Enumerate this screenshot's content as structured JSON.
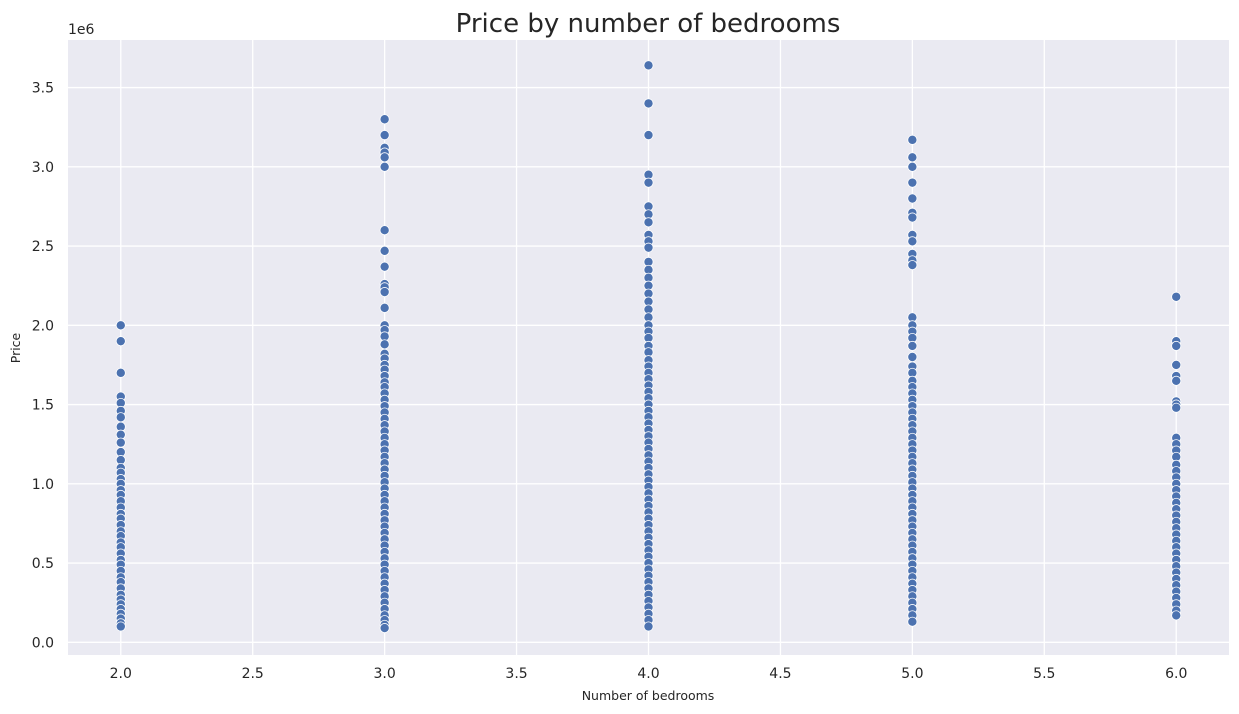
{
  "chart_data": {
    "type": "scatter",
    "title": "Price by number of bedrooms",
    "xlabel": "Number of bedrooms",
    "ylabel": "Price",
    "y_offset_label": "1e6",
    "xlim": [
      1.8,
      6.2
    ],
    "ylim": [
      -0.08,
      3.8
    ],
    "x_ticks": [
      2.0,
      2.5,
      3.0,
      3.5,
      4.0,
      4.5,
      5.0,
      5.5,
      6.0
    ],
    "x_tick_labels": [
      "2.0",
      "2.5",
      "3.0",
      "3.5",
      "4.0",
      "4.5",
      "5.0",
      "5.5",
      "6.0"
    ],
    "y_ticks": [
      0.0,
      0.5,
      1.0,
      1.5,
      2.0,
      2.5,
      3.0,
      3.5
    ],
    "y_tick_labels": [
      "0.0",
      "0.5",
      "1.0",
      "1.5",
      "2.0",
      "2.5",
      "3.0",
      "3.5"
    ],
    "grid": true,
    "background_color": "#eaeaf2",
    "marker_color": "#4c72b0",
    "series": [
      {
        "x": 2,
        "y": [
          2.0,
          1.9,
          1.7,
          1.55,
          1.51,
          1.46,
          1.42,
          1.36,
          1.31,
          1.26,
          1.2,
          1.15,
          1.1,
          1.07,
          1.03,
          1.0,
          0.96,
          0.93,
          0.89,
          0.85,
          0.81,
          0.78,
          0.74,
          0.7,
          0.67,
          0.63,
          0.6,
          0.56,
          0.52,
          0.49,
          0.45,
          0.41,
          0.38,
          0.34,
          0.3,
          0.27,
          0.24,
          0.21,
          0.18,
          0.15,
          0.12,
          0.1
        ]
      },
      {
        "x": 3,
        "y": [
          3.3,
          3.2,
          3.12,
          3.09,
          3.06,
          3.0,
          2.6,
          2.47,
          2.37,
          2.26,
          2.24,
          2.21,
          2.11,
          2.0,
          1.97,
          1.93,
          1.88,
          1.82,
          1.79,
          1.75,
          1.72,
          1.68,
          1.64,
          1.61,
          1.57,
          1.53,
          1.49,
          1.45,
          1.41,
          1.37,
          1.33,
          1.29,
          1.25,
          1.21,
          1.17,
          1.13,
          1.09,
          1.05,
          1.01,
          0.97,
          0.93,
          0.89,
          0.85,
          0.81,
          0.77,
          0.73,
          0.69,
          0.65,
          0.61,
          0.57,
          0.53,
          0.49,
          0.45,
          0.41,
          0.37,
          0.33,
          0.29,
          0.25,
          0.21,
          0.17,
          0.14,
          0.11,
          0.09
        ]
      },
      {
        "x": 4,
        "y": [
          3.64,
          3.4,
          3.2,
          2.95,
          2.9,
          2.75,
          2.7,
          2.65,
          2.57,
          2.53,
          2.49,
          2.4,
          2.35,
          2.3,
          2.25,
          2.2,
          2.15,
          2.1,
          2.05,
          2.0,
          1.96,
          1.92,
          1.87,
          1.83,
          1.78,
          1.74,
          1.7,
          1.66,
          1.62,
          1.58,
          1.54,
          1.5,
          1.46,
          1.42,
          1.38,
          1.34,
          1.3,
          1.26,
          1.22,
          1.18,
          1.14,
          1.1,
          1.06,
          1.02,
          0.98,
          0.94,
          0.9,
          0.86,
          0.82,
          0.78,
          0.74,
          0.7,
          0.66,
          0.62,
          0.58,
          0.54,
          0.5,
          0.46,
          0.42,
          0.38,
          0.34,
          0.3,
          0.26,
          0.22,
          0.18,
          0.14,
          0.1
        ]
      },
      {
        "x": 5,
        "y": [
          3.17,
          3.06,
          3.0,
          2.9,
          2.8,
          2.71,
          2.68,
          2.57,
          2.53,
          2.45,
          2.41,
          2.38,
          2.05,
          2.0,
          1.96,
          1.92,
          1.87,
          1.8,
          1.74,
          1.7,
          1.65,
          1.61,
          1.57,
          1.53,
          1.49,
          1.45,
          1.41,
          1.37,
          1.33,
          1.29,
          1.25,
          1.21,
          1.17,
          1.13,
          1.09,
          1.05,
          1.01,
          0.97,
          0.93,
          0.89,
          0.85,
          0.81,
          0.77,
          0.73,
          0.69,
          0.65,
          0.61,
          0.57,
          0.53,
          0.49,
          0.45,
          0.41,
          0.37,
          0.33,
          0.29,
          0.25,
          0.21,
          0.17,
          0.13
        ]
      },
      {
        "x": 6,
        "y": [
          2.18,
          1.9,
          1.87,
          1.75,
          1.68,
          1.65,
          1.52,
          1.5,
          1.48,
          1.29,
          1.25,
          1.21,
          1.17,
          1.12,
          1.08,
          1.04,
          1.0,
          0.96,
          0.92,
          0.88,
          0.84,
          0.8,
          0.76,
          0.72,
          0.68,
          0.64,
          0.6,
          0.56,
          0.52,
          0.48,
          0.44,
          0.4,
          0.36,
          0.32,
          0.28,
          0.24,
          0.2,
          0.17
        ]
      }
    ]
  }
}
